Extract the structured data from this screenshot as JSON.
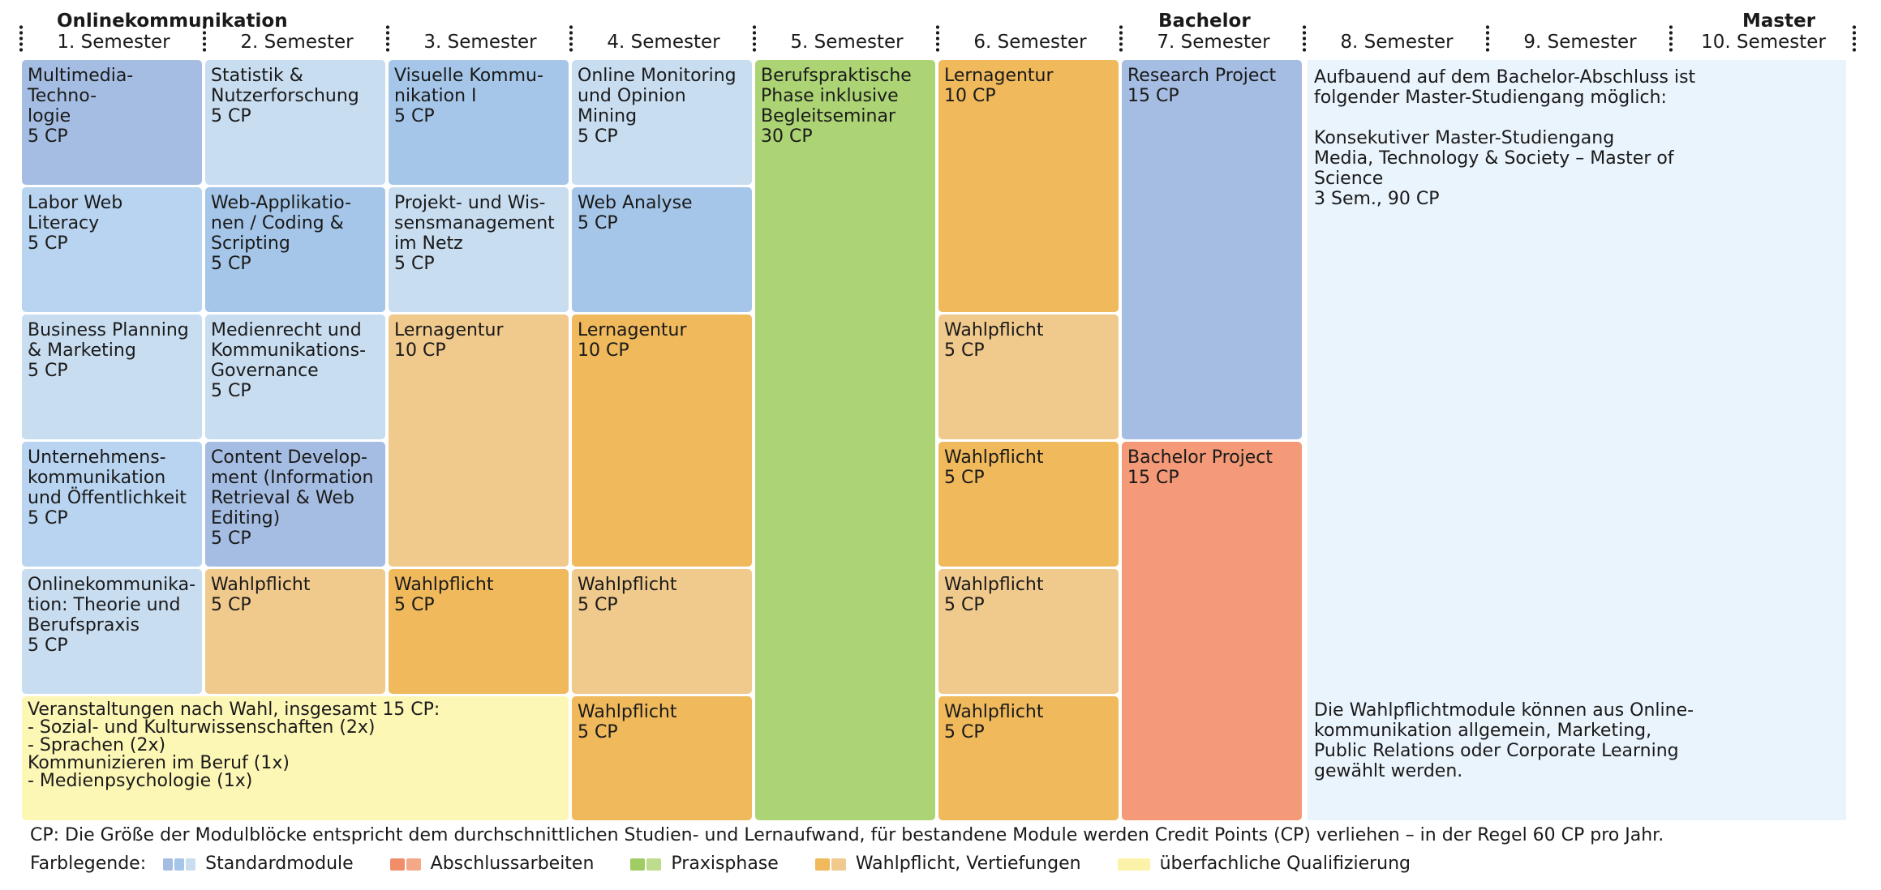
{
  "header": {
    "group_bachelor_start": "Onlinekommunikation",
    "group_bachelor": "Bachelor",
    "group_master": "Master",
    "semesters": [
      "1. Semester",
      "2. Semester",
      "3. Semester",
      "4. Semester",
      "5. Semester",
      "6. Semester",
      "7. Semester",
      "8. Semester",
      "9. Semester",
      "10. Semester"
    ]
  },
  "colors": {
    "blue_light": "#c9ddf1",
    "blue_mid": "#a5c6e8",
    "blue_dark": "#a5bde2",
    "orange_light": "#f0c98d",
    "orange_mid": "#efb95c",
    "green": "#acd474",
    "red": "#f49a78",
    "yellow": "#fdf7b6",
    "master_bg": "#eaf4fc"
  },
  "modules": {
    "s1": [
      {
        "title": "Multimedia-Techno-\nlogie",
        "cp": "5 CP"
      },
      {
        "title": "Labor Web\nLiteracy",
        "cp": "5 CP"
      },
      {
        "title": "Business Planning\n& Marketing",
        "cp": "5 CP"
      },
      {
        "title": "Unternehmens-\nkommunikation\nund Öffentlichkeit",
        "cp": "5 CP"
      },
      {
        "title": "Onlinekommunika-\ntion: Theorie und\nBerufspraxis",
        "cp": "5 CP"
      }
    ],
    "s2": [
      {
        "title": "Statistik &\nNutzerforschung",
        "cp": "5 CP"
      },
      {
        "title": "Web-Applikatio-\nnen / Coding &\nScripting",
        "cp": "5 CP"
      },
      {
        "title": "Medienrecht und\nKommunikations-\nGovernance",
        "cp": "5 CP"
      },
      {
        "title": "Content Develop-\nment (Information\nRetrieval & Web\nEditing)",
        "cp": "5 CP"
      },
      {
        "title": "Wahlpflicht",
        "cp": "5 CP"
      }
    ],
    "s3": [
      {
        "title": "Visuelle Kommu-\nnikation I",
        "cp": "5 CP"
      },
      {
        "title": "Projekt- und Wis-\nsensmanagement\nim Netz",
        "cp": "5 CP"
      },
      {
        "title": "Lernagentur",
        "cp": "10 CP"
      },
      {
        "title": "Wahlpflicht",
        "cp": "5 CP"
      }
    ],
    "s4": [
      {
        "title": "Online Monitoring\nund Opinion\nMining",
        "cp": "5 CP"
      },
      {
        "title": "Web Analyse",
        "cp": "5 CP"
      },
      {
        "title": "Lernagentur",
        "cp": "10 CP"
      },
      {
        "title": "Wahlpflicht",
        "cp": "5 CP"
      },
      {
        "title": "Wahlpflicht",
        "cp": "5 CP"
      }
    ],
    "s5": [
      {
        "title": "Berufspraktische\nPhase inklusive\nBegleitseminar",
        "cp": "30 CP"
      }
    ],
    "s6": [
      {
        "title": "Lernagentur",
        "cp": "10 CP"
      },
      {
        "title": "Wahlpflicht",
        "cp": "5 CP"
      },
      {
        "title": "Wahlpflicht",
        "cp": "5 CP"
      },
      {
        "title": "Wahlpflicht",
        "cp": "5 CP"
      },
      {
        "title": "Wahlpflicht",
        "cp": "5 CP"
      }
    ],
    "s7": [
      {
        "title": "Research Project",
        "cp": "15 CP"
      },
      {
        "title": "Bachelor Project",
        "cp": "15 CP"
      }
    ],
    "electives_box": "Veranstaltungen nach Wahl, insgesamt 15 CP:\n- Sozial- und Kulturwissenschaften (2x)\n- Sprachen (2x)\n   Kommunizieren im Beruf (1x)\n- Medienpsychologie (1x)"
  },
  "master": {
    "text_top": "Aufbauend auf dem Bachelor-Abschluss ist\nfolgender Master-Studiengang möglich:\n\nKonsekutiver Master-Studiengang\nMedia, Technology & Society – Master of\nScience\n3 Sem., 90 CP",
    "text_bottom": "Die Wahlpflichtmodule können aus Online-\nkommunikation allgemein, Marketing,\nPublic Relations oder Corporate Learning\ngewählt werden."
  },
  "footer": {
    "cp_note": "CP: Die Größe der Modulblöcke entspricht dem durchschnittlichen Studien- und Lernaufwand, für bestandene Module werden Credit Points (CP) verliehen – in der Regel 60 CP pro Jahr.",
    "legend_label": "Farblegende:",
    "legend": [
      {
        "label": "Standardmodule"
      },
      {
        "label": "Abschlussarbeiten"
      },
      {
        "label": "Praxisphase"
      },
      {
        "label": "Wahlpflicht, Vertiefungen"
      },
      {
        "label": "überfachliche Qualifizierung"
      }
    ]
  }
}
